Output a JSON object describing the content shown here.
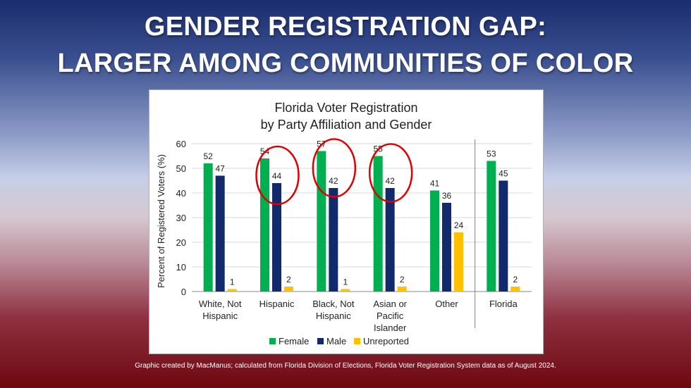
{
  "slide": {
    "title_line1": "GENDER REGISTRATION GAP:",
    "title_line2": "LARGER AMONG COMMUNITIES OF COLOR",
    "footnote": "Graphic created by MacManus; calculated from Florida Division of Elections, Florida Voter Registration System data as of August 2024."
  },
  "chart_data": {
    "type": "bar",
    "title": "Florida Voter Registration",
    "subtitle": "by Party Affiliation and Gender",
    "xlabel": "",
    "ylabel": "Percent of Registered Voters (%)",
    "ylim": [
      0,
      60
    ],
    "yticks": [
      0,
      10,
      20,
      30,
      40,
      50,
      60
    ],
    "grid": true,
    "legend_position": "bottom",
    "categories": [
      [
        "White, Not",
        "Hispanic"
      ],
      [
        "Hispanic"
      ],
      [
        "Black, Not",
        "Hispanic"
      ],
      [
        "Asian or",
        "Pacific",
        "Islander"
      ],
      [
        "Other"
      ],
      [
        "Florida"
      ]
    ],
    "series": [
      {
        "name": "Female",
        "color": "#00b050",
        "values": [
          52,
          54,
          57,
          55,
          41,
          53
        ]
      },
      {
        "name": "Male",
        "color": "#102a6b",
        "values": [
          47,
          44,
          42,
          42,
          36,
          45
        ]
      },
      {
        "name": "Unreported",
        "color": "#ffc000",
        "values": [
          1,
          2,
          1,
          2,
          24,
          2
        ]
      }
    ],
    "highlighted_categories": [
      1,
      2,
      3
    ],
    "highlight_color": "#e00000",
    "separator_before_category": 5
  }
}
